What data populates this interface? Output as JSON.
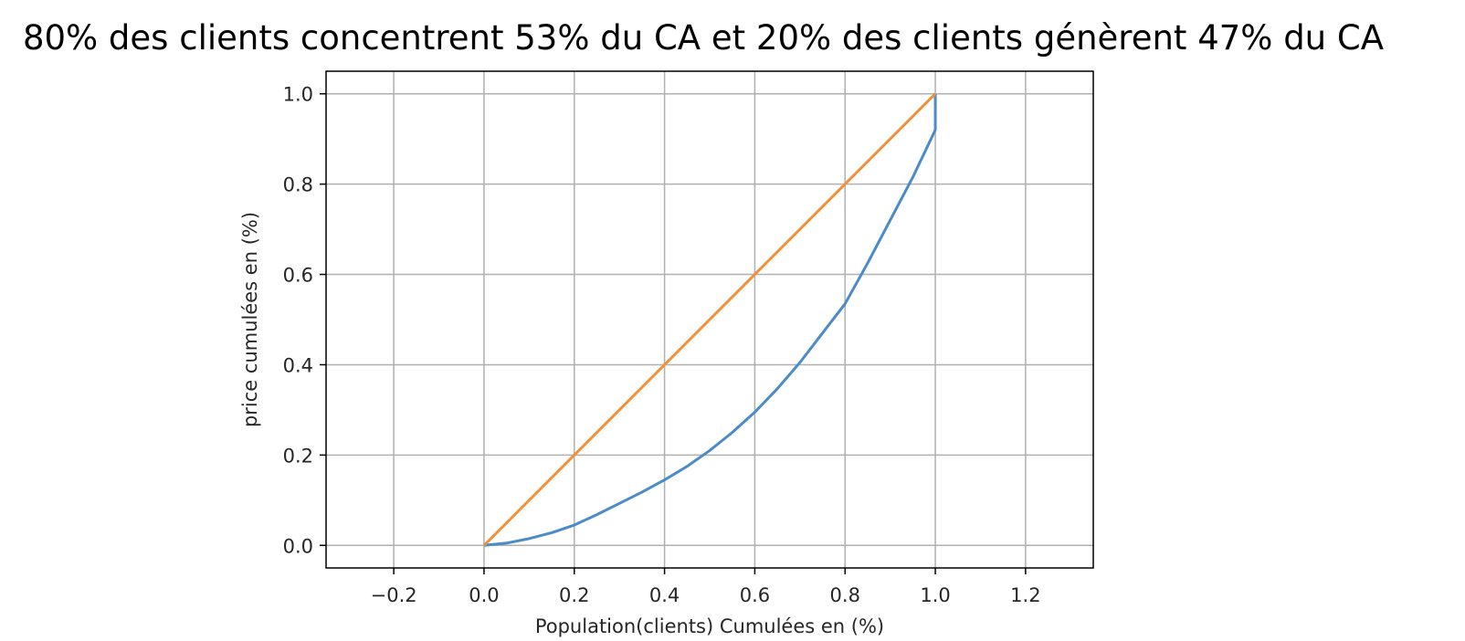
{
  "chart_data": {
    "type": "line",
    "title": "80% des clients concentrent 53% du CA et 20% des clients génèrent 47% du CA",
    "xlabel": "Population(clients) Cumulées en (%)",
    "ylabel": "price cumulées en (%)",
    "xlim": [
      -0.35,
      1.35
    ],
    "ylim": [
      -0.05,
      1.05
    ],
    "xticks": [
      -0.2,
      0.0,
      0.2,
      0.4,
      0.6,
      0.8,
      1.0,
      1.2
    ],
    "xtick_labels": [
      "−0.2",
      "0.0",
      "0.2",
      "0.4",
      "0.6",
      "0.8",
      "1.0",
      "1.2"
    ],
    "yticks": [
      0.0,
      0.2,
      0.4,
      0.6,
      0.8,
      1.0
    ],
    "ytick_labels": [
      "0.0",
      "0.2",
      "0.4",
      "0.6",
      "0.8",
      "1.0"
    ],
    "grid": true,
    "series": [
      {
        "color": "#4c8bc9",
        "x": [
          0.0,
          0.05,
          0.1,
          0.15,
          0.2,
          0.25,
          0.3,
          0.35,
          0.4,
          0.45,
          0.5,
          0.55,
          0.6,
          0.65,
          0.7,
          0.75,
          0.8,
          0.85,
          0.9,
          0.95,
          1.0,
          1.0
        ],
        "y": [
          0.0,
          0.005,
          0.015,
          0.028,
          0.045,
          0.068,
          0.093,
          0.118,
          0.145,
          0.175,
          0.21,
          0.25,
          0.295,
          0.347,
          0.405,
          0.47,
          0.535,
          0.625,
          0.72,
          0.815,
          0.92,
          1.0
        ]
      },
      {
        "color": "#f0913a",
        "x": [
          0.0,
          1.0
        ],
        "y": [
          0.0,
          1.0
        ]
      }
    ]
  }
}
